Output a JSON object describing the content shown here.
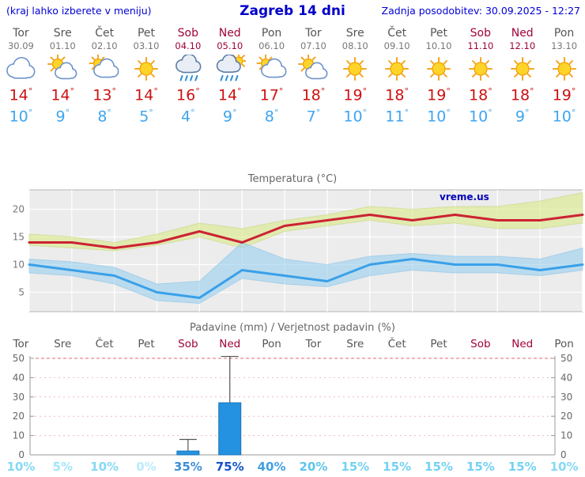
{
  "header": {
    "left_note": "(kraj lahko izberete v meniju)",
    "title": "Zagreb 14 dni",
    "updated": "Zadnja posodobitev: 30.09.2025 - 12:27"
  },
  "symbols": {
    "degree": "°"
  },
  "colors": {
    "accent_blue": "#0000c8",
    "weekend_red": "#a00339",
    "tmax_red": "#cc1111",
    "tmin_blue": "#3fa5f0",
    "bar_blue": "#2492e0"
  },
  "days": [
    {
      "name": "Tor",
      "date": "30.09",
      "weekend": false,
      "icon": "cloudy",
      "tmax": "14",
      "tmin": "10"
    },
    {
      "name": "Sre",
      "date": "01.10",
      "weekend": false,
      "icon": "partly-sunny",
      "tmax": "14",
      "tmin": "9"
    },
    {
      "name": "Čet",
      "date": "02.10",
      "weekend": false,
      "icon": "mostly-cloudy",
      "tmax": "13",
      "tmin": "8"
    },
    {
      "name": "Pet",
      "date": "03.10",
      "weekend": false,
      "icon": "sunny",
      "tmax": "14",
      "tmin": "5"
    },
    {
      "name": "Sob",
      "date": "04.10",
      "weekend": true,
      "icon": "rain",
      "tmax": "16",
      "tmin": "4"
    },
    {
      "name": "Ned",
      "date": "05.10",
      "weekend": true,
      "icon": "rain-sun",
      "tmax": "14",
      "tmin": "9"
    },
    {
      "name": "Pon",
      "date": "06.10",
      "weekend": false,
      "icon": "mostly-cloudy",
      "tmax": "17",
      "tmin": "8"
    },
    {
      "name": "Tor",
      "date": "07.10",
      "weekend": false,
      "icon": "partly-sunny",
      "tmax": "18",
      "tmin": "7"
    },
    {
      "name": "Sre",
      "date": "08.10",
      "weekend": false,
      "icon": "sunny",
      "tmax": "19",
      "tmin": "10"
    },
    {
      "name": "Čet",
      "date": "09.10",
      "weekend": false,
      "icon": "sunny",
      "tmax": "18",
      "tmin": "11"
    },
    {
      "name": "Pet",
      "date": "10.10",
      "weekend": false,
      "icon": "sunny",
      "tmax": "19",
      "tmin": "10"
    },
    {
      "name": "Sob",
      "date": "11.10",
      "weekend": true,
      "icon": "sunny",
      "tmax": "18",
      "tmin": "10"
    },
    {
      "name": "Ned",
      "date": "12.10",
      "weekend": true,
      "icon": "sunny",
      "tmax": "18",
      "tmin": "9"
    },
    {
      "name": "Pon",
      "date": "13.10",
      "weekend": false,
      "icon": "sunny",
      "tmax": "19",
      "tmin": "10"
    }
  ],
  "precip_prob_labels": [
    "10%",
    "5%",
    "10%",
    "0%",
    "35%",
    "75%",
    "40%",
    "20%",
    "15%",
    "15%",
    "15%",
    "15%",
    "15%",
    "10%"
  ],
  "prob_colors": [
    "#85d9f4",
    "#a0e4f8",
    "#85d9f4",
    "#b9ecfa",
    "#3c8fd8",
    "#1553c8",
    "#419fe2",
    "#5fc4ec",
    "#74d2f2",
    "#74d2f2",
    "#74d2f2",
    "#74d2f2",
    "#74d2f2",
    "#85d9f4"
  ],
  "chart_data": [
    {
      "type": "line",
      "title": "Temperatura (°C)",
      "watermark": "vreme.us",
      "categories": [
        "Tor 30.09",
        "Sre 01.10",
        "Čet 02.10",
        "Pet 03.10",
        "Sob 04.10",
        "Ned 05.10",
        "Pon 06.10",
        "Tor 07.10",
        "Sre 08.10",
        "Čet 09.10",
        "Pet 10.10",
        "Sob 11.10",
        "Ned 12.10",
        "Pon 13.10"
      ],
      "ylim": [
        1.5,
        23.5
      ],
      "yticks": [
        5,
        10,
        15,
        20
      ],
      "grid": true,
      "legend_position": "none",
      "series": [
        {
          "name": "max_temp",
          "color": "#cc2233",
          "values": [
            14,
            14,
            13,
            14,
            16,
            14,
            17,
            18,
            19,
            18,
            19,
            18,
            18,
            19
          ]
        },
        {
          "name": "min_temp",
          "color": "#3aa0e8",
          "values": [
            10,
            9,
            8,
            5,
            4,
            9,
            8,
            7,
            10,
            11,
            10,
            10,
            9,
            10
          ]
        },
        {
          "name": "max_range_upper",
          "color": "#dce98f",
          "values": [
            15.5,
            15,
            14,
            15.5,
            17.5,
            16.5,
            18,
            19,
            20.5,
            20,
            20.5,
            20.5,
            21.5,
            23
          ]
        },
        {
          "name": "max_range_lower",
          "color": "#dce98f",
          "values": [
            13.5,
            13,
            12.5,
            13.5,
            15,
            13,
            16,
            17,
            18,
            17,
            17.5,
            16.5,
            16.5,
            17.5
          ]
        },
        {
          "name": "min_range_upper",
          "color": "#9fd2f0",
          "values": [
            11,
            10.5,
            9.5,
            6.5,
            7,
            14,
            11,
            10,
            11.5,
            12,
            11.5,
            11.5,
            11,
            13
          ]
        },
        {
          "name": "min_range_lower",
          "color": "#9fd2f0",
          "values": [
            8.5,
            8,
            6.5,
            3.5,
            3,
            7.5,
            6.5,
            6,
            8,
            9,
            8.5,
            8.5,
            8,
            9
          ]
        }
      ]
    },
    {
      "type": "bar",
      "title": "Padavine (mm) / Verjetnost padavin (%)",
      "categories": [
        "Tor",
        "Sre",
        "Čet",
        "Pet",
        "Sob",
        "Ned",
        "Pon",
        "Tor",
        "Sre",
        "Čet",
        "Pet",
        "Sob",
        "Ned",
        "Pon"
      ],
      "precip_mm": [
        0,
        0,
        0,
        0,
        2,
        27,
        0,
        0,
        0,
        0,
        0,
        0,
        0,
        0
      ],
      "precip_max_mm": [
        0,
        0,
        0,
        0,
        8,
        51,
        0,
        0,
        0,
        0,
        0,
        0,
        0,
        0
      ],
      "probability_pct": [
        10,
        5,
        10,
        0,
        35,
        75,
        40,
        20,
        15,
        15,
        15,
        15,
        15,
        10
      ],
      "ylim": [
        0,
        50
      ],
      "yticks": [
        0,
        10,
        20,
        30,
        40,
        50
      ],
      "grid": true,
      "bar_color": "#2492e0"
    }
  ]
}
